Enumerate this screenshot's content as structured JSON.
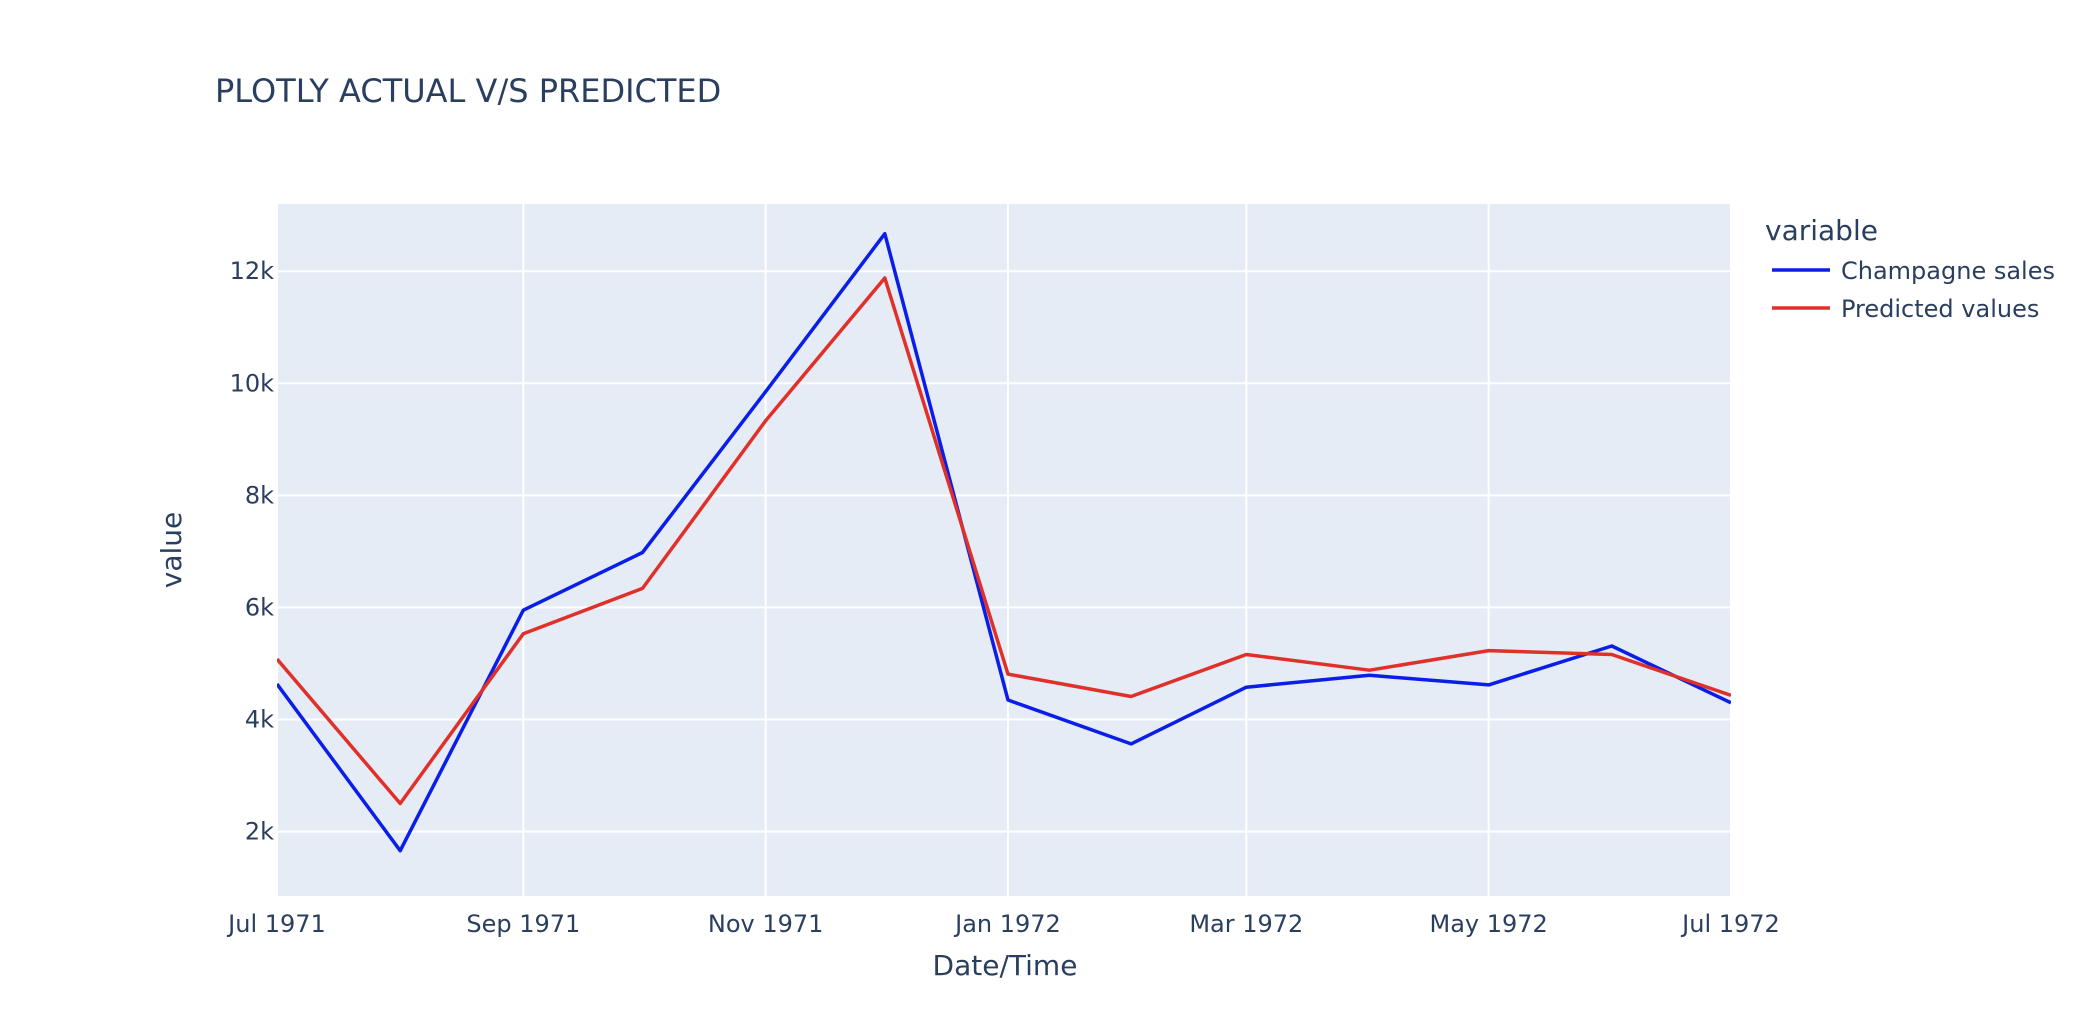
{
  "chart_data": {
    "type": "line",
    "title": "PLOTLY ACTUAL V/S PREDICTED",
    "xlabel": "Date/Time",
    "ylabel": "value",
    "x_dates": [
      "1971-07-01",
      "1971-08-01",
      "1971-09-01",
      "1971-10-01",
      "1971-11-01",
      "1971-12-01",
      "1972-01-01",
      "1972-02-01",
      "1972-03-01",
      "1972-04-01",
      "1972-05-01",
      "1972-06-01",
      "1972-07-01"
    ],
    "xlim": [
      "1971-07-01",
      "1972-07-01"
    ],
    "ylim": [
      850,
      13200
    ],
    "x_ticks": [
      {
        "date": "1971-07-01",
        "label": "Jul 1971"
      },
      {
        "date": "1971-09-01",
        "label": "Sep 1971"
      },
      {
        "date": "1971-11-01",
        "label": "Nov 1971"
      },
      {
        "date": "1972-01-01",
        "label": "Jan 1972"
      },
      {
        "date": "1972-03-01",
        "label": "Mar 1972"
      },
      {
        "date": "1972-05-01",
        "label": "May 1972"
      },
      {
        "date": "1972-07-01",
        "label": "Jul 1972"
      }
    ],
    "y_ticks": [
      {
        "value": 2000,
        "label": "2k"
      },
      {
        "value": 4000,
        "label": "4k"
      },
      {
        "value": 6000,
        "label": "6k"
      },
      {
        "value": 8000,
        "label": "8k"
      },
      {
        "value": 10000,
        "label": "10k"
      },
      {
        "value": 12000,
        "label": "12k"
      }
    ],
    "grid": true,
    "legend": {
      "title": "variable",
      "position": "top-right outside"
    },
    "series": [
      {
        "name": "Champagne sales",
        "color": "#0a1ee8",
        "values": [
          4633,
          1659,
          5951,
          6981,
          9851,
          12670,
          4348,
          3564,
          4577,
          4788,
          4618,
          5312,
          4298
        ]
      },
      {
        "name": "Predicted values",
        "color": "#e0302a",
        "values": [
          5080,
          2500,
          5530,
          6340,
          9330,
          11880,
          4810,
          4410,
          5160,
          4880,
          5230,
          5160,
          4430
        ]
      }
    ],
    "plot_bg": "#e5ecf6",
    "grid_color": "#ffffff",
    "text_color": "#2a3f5f"
  }
}
